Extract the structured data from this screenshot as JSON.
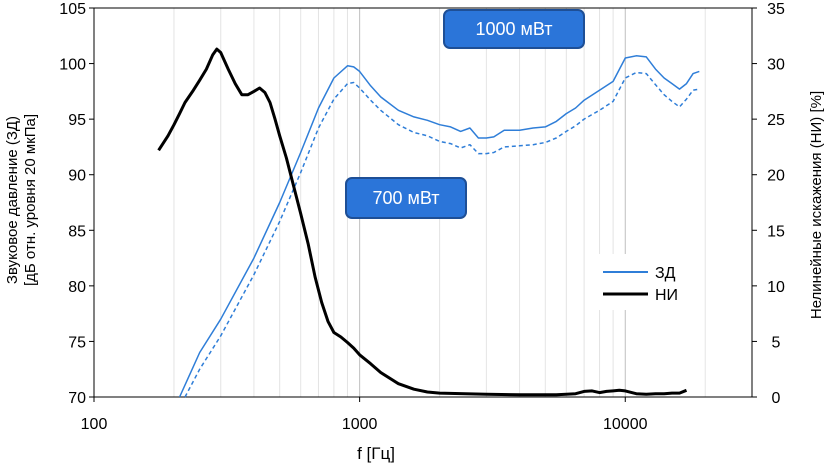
{
  "chart_data": {
    "type": "line",
    "xlabel": "f [Гц]",
    "ylabel_left_line1": "Звуковое давление (ЗД)",
    "ylabel_left_line2": "[дБ отн. уровня 20 мкПа]",
    "ylabel_right": "Нелинейные искажения (НИ) [%]",
    "x_scale": "log",
    "xlim": [
      100,
      30000
    ],
    "x_ticks": [
      100,
      1000,
      10000
    ],
    "x_tick_labels": [
      "100",
      "1000",
      "10000"
    ],
    "ylim_left": [
      70,
      105
    ],
    "y_ticks_left": [
      70,
      75,
      80,
      85,
      90,
      95,
      100,
      105
    ],
    "ylim_right": [
      0,
      35
    ],
    "y_ticks_right": [
      0,
      5,
      10,
      15,
      20,
      25,
      30,
      35
    ],
    "grid": "vertical minor lines",
    "legend": {
      "position": "right",
      "entries": [
        {
          "name": "ЗД",
          "color": "#2f7ed8",
          "style": "solid"
        },
        {
          "name": "НИ",
          "color": "#000000",
          "style": "solid"
        }
      ]
    },
    "annotations": [
      {
        "text": "1000 мВт",
        "x": 1900,
        "y": 103
      },
      {
        "text": "700 мВт",
        "x": 1150,
        "y": 88.5
      }
    ],
    "series": [
      {
        "name": "ЗД",
        "axis": "left",
        "color": "#2f7ed8",
        "dash": "none",
        "x": [
          210,
          250,
          300,
          400,
          500,
          600,
          700,
          800,
          900,
          950,
          1000,
          1100,
          1200,
          1400,
          1600,
          1800,
          2000,
          2200,
          2400,
          2600,
          2800,
          3000,
          3200,
          3500,
          4000,
          4500,
          5000,
          5500,
          6000,
          6500,
          7000,
          8000,
          9000,
          10000,
          11000,
          12000,
          13000,
          14000,
          15000,
          16000,
          17000,
          18000,
          19000
        ],
        "y": [
          70,
          74,
          77,
          82.5,
          87.5,
          92,
          96,
          98.7,
          99.8,
          99.7,
          99.3,
          98,
          97,
          95.8,
          95.2,
          94.9,
          94.5,
          94.3,
          93.9,
          94.2,
          93.3,
          93.3,
          93.4,
          94,
          94,
          94.2,
          94.3,
          94.8,
          95.5,
          96,
          96.7,
          97.6,
          98.4,
          100.5,
          100.7,
          100.6,
          99.5,
          98.7,
          98.2,
          97.7,
          98.2,
          99.1,
          99.3
        ]
      },
      {
        "name": "ЗД",
        "axis": "left",
        "color": "#2f7ed8",
        "dash": "dashed",
        "x": [
          220,
          250,
          300,
          400,
          500,
          600,
          700,
          800,
          900,
          950,
          1000,
          1100,
          1200,
          1400,
          1600,
          1800,
          2000,
          2200,
          2400,
          2600,
          2800,
          3000,
          3200,
          3500,
          4000,
          4500,
          5000,
          5500,
          6000,
          6500,
          7000,
          8000,
          9000,
          10000,
          11000,
          12000,
          13000,
          14000,
          15000,
          16000,
          17000,
          18000,
          19000
        ],
        "y": [
          70,
          72.5,
          75.5,
          81,
          85.8,
          90.2,
          94.2,
          96.8,
          98.2,
          98.3,
          97.8,
          96.7,
          95.8,
          94.5,
          93.8,
          93.5,
          93,
          92.8,
          92.4,
          92.7,
          91.9,
          91.9,
          92,
          92.5,
          92.6,
          92.7,
          92.9,
          93.3,
          93.9,
          94.4,
          95,
          95.8,
          96.6,
          98.7,
          99.2,
          99.1,
          98.1,
          97.2,
          96.6,
          96.1,
          96.8,
          97.6,
          97.7
        ]
      },
      {
        "name": "НИ",
        "axis": "right",
        "color": "#000000",
        "dash": "none",
        "x": [
          175,
          190,
          200,
          210,
          220,
          235,
          250,
          265,
          280,
          290,
          300,
          320,
          340,
          360,
          380,
          400,
          420,
          440,
          460,
          480,
          500,
          530,
          560,
          600,
          640,
          680,
          720,
          760,
          800,
          850,
          900,
          950,
          1000,
          1100,
          1200,
          1400,
          1600,
          1800,
          2000,
          2500,
          3000,
          4000,
          5000,
          5500,
          6000,
          6500,
          7000,
          7500,
          8000,
          8500,
          9000,
          9500,
          10000,
          11000,
          12000,
          13000,
          14000,
          15000,
          16000,
          17000
        ],
        "y": [
          22.2,
          23.5,
          24.5,
          25.5,
          26.5,
          27.5,
          28.5,
          29.5,
          30.8,
          31.3,
          31,
          29.5,
          28.2,
          27.2,
          27.2,
          27.5,
          27.8,
          27.4,
          26.5,
          25,
          23.5,
          21.5,
          19.3,
          16.5,
          13.8,
          10.8,
          8.5,
          6.8,
          5.8,
          5.4,
          4.9,
          4.4,
          3.8,
          3,
          2.2,
          1.2,
          0.7,
          0.45,
          0.35,
          0.3,
          0.25,
          0.2,
          0.2,
          0.2,
          0.25,
          0.3,
          0.5,
          0.55,
          0.4,
          0.5,
          0.55,
          0.6,
          0.55,
          0.3,
          0.25,
          0.3,
          0.3,
          0.35,
          0.35,
          0.6
        ]
      }
    ]
  }
}
